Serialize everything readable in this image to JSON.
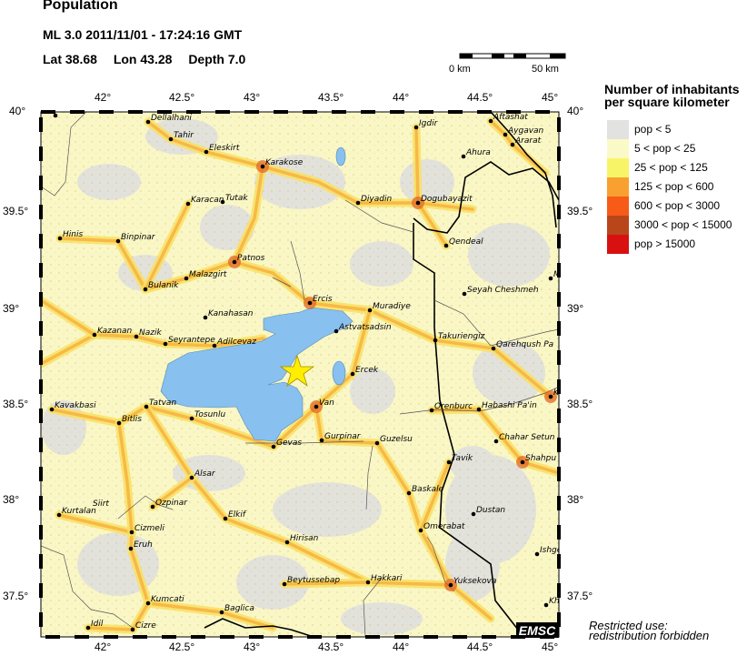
{
  "header": {
    "title": "Population",
    "event": "ML 3.0  2011/11/01 - 17:24:16 GMT",
    "lat": "Lat 38.68",
    "lon": "Lon  43.28",
    "depth": "Depth  7.0"
  },
  "scale_bar": {
    "start": "0 km",
    "end": "50 km"
  },
  "axes": {
    "lon_labels": [
      "42°",
      "42.5°",
      "43°",
      "43.5°",
      "44°",
      "44.5°",
      "45°"
    ],
    "lat_labels": [
      "40°",
      "39.5°",
      "39°",
      "38.5°",
      "38°",
      "37.5°"
    ]
  },
  "legend": {
    "title_line1": "Number of inhabitants",
    "title_line2": "per square kilometer",
    "items": [
      {
        "label": "pop < 5",
        "color": "#e2e2e0"
      },
      {
        "label": "5 < pop < 25",
        "color": "#fafac8"
      },
      {
        "label": "25 < pop < 125",
        "color": "#f8f468"
      },
      {
        "label": "125 < pop < 600",
        "color": "#f8a030"
      },
      {
        "label": "600 < pop < 3000",
        "color": "#f85a18"
      },
      {
        "label": "3000 < pop < 15000",
        "color": "#b8461a"
      },
      {
        "label": "pop > 15000",
        "color": "#d81010"
      }
    ]
  },
  "map": {
    "epicenter_icon": "star-icon",
    "water_color": "#88c0f0",
    "cities": [
      "Dellalhani",
      "Tahir",
      "Eleskirt",
      "Karakose",
      "Karacan",
      "Tutak",
      "Hinis",
      "Binpinar",
      "Patnos",
      "Malazgirt",
      "Bulanik",
      "Igdir",
      "Aftashat",
      "Aygavan",
      "Ararat",
      "Ahura",
      "Diyadin",
      "Dogubayazit",
      "Qendeal",
      "M",
      "Seyah Cheshmeh",
      "Ercis",
      "Muradiye",
      "Kanahasan",
      "Kazanan",
      "Nazik",
      "Seyrantepe",
      "Adilcevaz",
      "Astvatsadsin",
      "Takuriengiz",
      "Qarehqush Pa",
      "Ercek",
      "Van",
      "Kavakbasi",
      "Tatvan",
      "Bitlis",
      "Tosunlu",
      "Orenburc",
      "Habashi Pa'in",
      "K",
      "Gevas",
      "Gurpinar",
      "Guzelsu",
      "Chahar Setun",
      "Shahpu",
      "Tavik",
      "Alsar",
      "Baskale",
      "Ozpinar",
      "Kurtalan",
      "Siirt",
      "Elkif",
      "Dustan",
      "Cizmeli",
      "Omerabat",
      "Eruh",
      "Hirisan",
      "Ishge",
      "Beytussebap",
      "Hakkari",
      "Yuksekova",
      "Kumcati",
      "Kh",
      "Baglica",
      "Idil",
      "Cizre"
    ],
    "logo": "EMSC"
  },
  "notice": {
    "line1": "Restricted use:",
    "line2": "redistribution forbidden"
  }
}
